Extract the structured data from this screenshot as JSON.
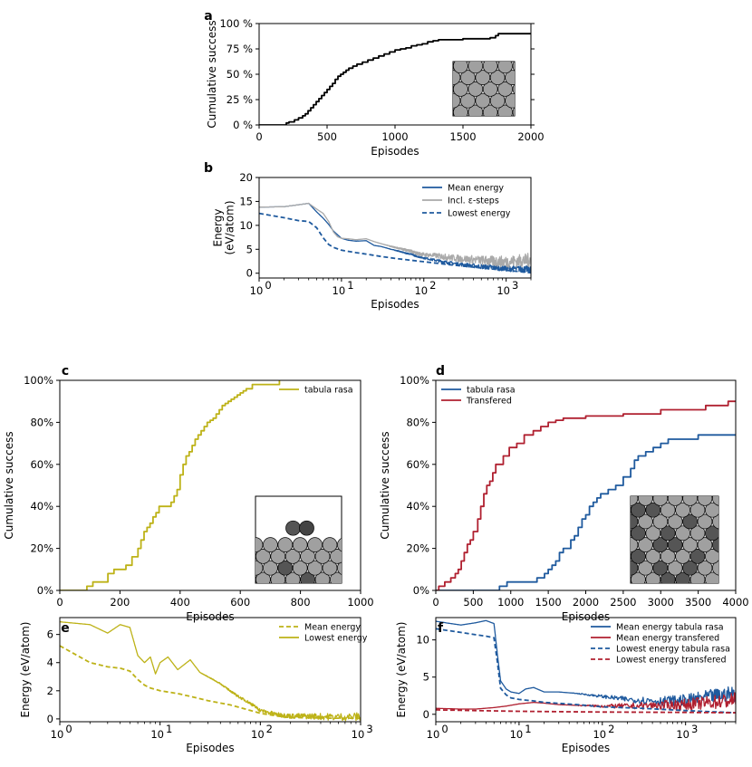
{
  "chart_data": [
    {
      "panel": "a",
      "type": "line",
      "xlabel": "Episodes",
      "ylabel": "Cumulative success",
      "xlim": [
        0,
        2000
      ],
      "ylim": [
        0,
        100
      ],
      "xticks": [
        "0",
        "500",
        "1000",
        "1500",
        "2000"
      ],
      "yticks": [
        "0 %",
        "25 %",
        "50 %",
        "75 %",
        "100 %"
      ],
      "series": [
        {
          "name": "cumulative success",
          "color": "#000000",
          "style": "step",
          "x": [
            0,
            200,
            220,
            260,
            290,
            320,
            340,
            360,
            380,
            400,
            420,
            440,
            460,
            480,
            500,
            520,
            540,
            560,
            580,
            600,
            620,
            640,
            660,
            690,
            720,
            760,
            800,
            840,
            880,
            920,
            960,
            1000,
            1040,
            1080,
            1120,
            1160,
            1200,
            1240,
            1280,
            1320,
            1400,
            1500,
            1600,
            1700,
            1740,
            1760,
            2000
          ],
          "y": [
            0,
            2,
            3,
            5,
            7,
            9,
            11,
            14,
            17,
            20,
            23,
            26,
            29,
            32,
            35,
            38,
            41,
            45,
            48,
            50,
            52,
            54,
            56,
            58,
            60,
            62,
            64,
            66,
            68,
            70,
            72,
            74,
            75,
            76,
            78,
            79,
            80,
            82,
            83,
            84,
            84,
            85,
            85,
            86,
            88,
            90,
            90
          ]
        }
      ]
    },
    {
      "panel": "b",
      "type": "line",
      "xscale": "log",
      "xlabel": "Episodes",
      "ylabel": "Energy\n(eV/atom)",
      "xlim": [
        1,
        2000
      ],
      "ylim": [
        -1,
        20
      ],
      "yticks": [
        "0",
        "5",
        "10",
        "15",
        "20"
      ],
      "xticks": [
        "10",
        "10",
        "10",
        "10"
      ],
      "xtick_exponents": [
        "0",
        "1",
        "2",
        "3"
      ],
      "legend": [
        "Mean energy",
        "Incl. ε-steps",
        "Lowest energy"
      ],
      "series": [
        {
          "name": "Mean energy",
          "color": "#1f5a9e",
          "x": [
            1,
            2,
            3,
            4,
            5,
            6,
            7,
            8,
            9,
            10,
            12,
            15,
            20,
            25,
            30,
            40,
            50,
            60,
            70,
            80,
            100,
            150,
            200,
            300,
            500,
            700,
            1000,
            1500,
            2000
          ],
          "y": [
            13.8,
            13.9,
            14.3,
            14.6,
            12.8,
            11.5,
            10.2,
            8.8,
            8.0,
            7.3,
            6.9,
            6.7,
            6.8,
            5.8,
            5.6,
            5.0,
            4.6,
            4.2,
            4.0,
            3.6,
            3.2,
            2.6,
            2.2,
            1.8,
            1.4,
            1.2,
            1.0,
            0.9,
            0.8
          ],
          "noise": 0.6
        },
        {
          "name": "Incl. ε-steps",
          "color": "#aaaaaa",
          "x": [
            1,
            2,
            3,
            4,
            5,
            6,
            7,
            8,
            9,
            10,
            12,
            15,
            20,
            25,
            30,
            40,
            50,
            60,
            70,
            80,
            100,
            150,
            200,
            300,
            500,
            700,
            1000,
            1500,
            2000
          ],
          "y": [
            13.8,
            13.9,
            14.3,
            14.6,
            13.4,
            12.5,
            10.8,
            8.6,
            7.6,
            7.3,
            7.2,
            7.0,
            7.2,
            6.6,
            6.2,
            5.6,
            5.2,
            4.9,
            4.6,
            4.2,
            3.9,
            3.6,
            3.3,
            3.0,
            2.7,
            2.5,
            2.4,
            2.6,
            2.8
          ],
          "noise": 1.2
        },
        {
          "name": "Lowest energy",
          "color": "#1f5a9e",
          "style": "dashed",
          "x": [
            1,
            2,
            3,
            4,
            5,
            6,
            7,
            8,
            10,
            15,
            20,
            30,
            50,
            100,
            200,
            500,
            1000,
            2000
          ],
          "y": [
            12.5,
            11.6,
            11.0,
            10.8,
            9.5,
            7.4,
            6.0,
            5.4,
            4.8,
            4.3,
            4.0,
            3.5,
            3.0,
            2.4,
            1.8,
            1.1,
            0.6,
            0.1
          ]
        }
      ]
    },
    {
      "panel": "c",
      "type": "line",
      "xlabel": "Episodes",
      "ylabel": "Cumulative success",
      "xlim": [
        0,
        1000
      ],
      "ylim": [
        0,
        100
      ],
      "xticks": [
        "0",
        "200",
        "400",
        "600",
        "800",
        "1000"
      ],
      "yticks": [
        "0%",
        "20%",
        "40%",
        "60%",
        "80%",
        "100%"
      ],
      "legend": [
        "tabula rasa"
      ],
      "series": [
        {
          "name": "tabula rasa",
          "color": "#bdb217",
          "style": "step",
          "x": [
            0,
            90,
            110,
            160,
            180,
            220,
            240,
            260,
            270,
            280,
            290,
            300,
            310,
            320,
            330,
            340,
            370,
            380,
            390,
            400,
            410,
            420,
            430,
            440,
            450,
            460,
            470,
            480,
            490,
            500,
            510,
            520,
            530,
            540,
            550,
            560,
            570,
            580,
            590,
            600,
            610,
            620,
            640,
            680,
            730
          ],
          "y": [
            0,
            2,
            4,
            8,
            10,
            12,
            16,
            20,
            24,
            28,
            30,
            32,
            35,
            37,
            40,
            40,
            42,
            45,
            48,
            55,
            60,
            64,
            66,
            69,
            72,
            74,
            76,
            78,
            80,
            81,
            82,
            84,
            86,
            88,
            89,
            90,
            91,
            92,
            93,
            94,
            95,
            96,
            98,
            98,
            100
          ]
        }
      ]
    },
    {
      "panel": "d",
      "type": "line",
      "xlabel": "Episodes",
      "ylabel": "Cumulative success",
      "xlim": [
        0,
        4000
      ],
      "ylim": [
        0,
        100
      ],
      "xticks": [
        "0",
        "500",
        "1000",
        "1500",
        "2000",
        "2500",
        "3000",
        "3500",
        "4000"
      ],
      "yticks": [
        "0%",
        "20%",
        "40%",
        "60%",
        "80%",
        "100%"
      ],
      "legend": [
        "tabula rasa",
        "Transfered"
      ],
      "series": [
        {
          "name": "tabula rasa",
          "color": "#1f5a9e",
          "style": "step",
          "x": [
            0,
            850,
            950,
            1000,
            1100,
            1200,
            1350,
            1450,
            1500,
            1550,
            1600,
            1650,
            1700,
            1800,
            1850,
            1900,
            1950,
            2000,
            2050,
            2100,
            2150,
            2200,
            2300,
            2400,
            2500,
            2600,
            2650,
            2700,
            2800,
            2900,
            3000,
            3100,
            3200,
            3500,
            3700,
            4000
          ],
          "y": [
            0,
            2,
            4,
            4,
            4,
            4,
            6,
            8,
            10,
            12,
            14,
            18,
            20,
            24,
            26,
            30,
            34,
            36,
            40,
            42,
            44,
            46,
            48,
            50,
            54,
            58,
            62,
            64,
            66,
            68,
            70,
            72,
            72,
            74,
            74,
            74
          ]
        },
        {
          "name": "Transfered",
          "color": "#b02030",
          "style": "step",
          "x": [
            0,
            40,
            120,
            200,
            260,
            300,
            340,
            380,
            420,
            460,
            500,
            560,
            600,
            640,
            680,
            720,
            760,
            800,
            900,
            980,
            1080,
            1180,
            1300,
            1400,
            1500,
            1600,
            1700,
            2000,
            2500,
            3000,
            3600,
            3900,
            4000
          ],
          "y": [
            0,
            2,
            4,
            6,
            8,
            10,
            14,
            18,
            22,
            24,
            28,
            34,
            40,
            46,
            50,
            52,
            56,
            60,
            64,
            68,
            70,
            74,
            76,
            78,
            80,
            81,
            82,
            83,
            84,
            86,
            88,
            90,
            90
          ]
        }
      ]
    },
    {
      "panel": "e",
      "type": "line",
      "xscale": "log",
      "xlabel": "Episodes",
      "ylabel": "Energy (eV/atom)",
      "xlim": [
        1,
        1000
      ],
      "ylim": [
        -0.2,
        7.2
      ],
      "yticks": [
        "0",
        "2",
        "4",
        "6"
      ],
      "xticks": [
        "10",
        "10",
        "10",
        "10"
      ],
      "xtick_exponents": [
        "0",
        "1",
        "2",
        "3"
      ],
      "legend": [
        "Mean energy",
        "Lowest energy"
      ],
      "series": [
        {
          "name": "Mean energy",
          "color": "#bdb217",
          "style": "dashed",
          "x": [
            1,
            1.5,
            2,
            3,
            4,
            5,
            6,
            7,
            8,
            10,
            15,
            20,
            30,
            50,
            80,
            100,
            150,
            200,
            500,
            1000
          ],
          "y": [
            5.2,
            4.5,
            4.0,
            3.7,
            3.6,
            3.4,
            2.8,
            2.4,
            2.2,
            2.0,
            1.8,
            1.6,
            1.3,
            1.0,
            0.6,
            0.4,
            0.2,
            0.1,
            0.05,
            0.05
          ]
        },
        {
          "name": "Lowest energy",
          "color": "#bdb217",
          "x": [
            1,
            2,
            3,
            4,
            5,
            6,
            7,
            8,
            9,
            10,
            12,
            15,
            20,
            25,
            30,
            40,
            50,
            60,
            80,
            100,
            150,
            200,
            300,
            500,
            1000
          ],
          "y": [
            6.9,
            6.7,
            6.1,
            6.7,
            6.5,
            4.5,
            4.0,
            4.4,
            3.2,
            4.0,
            4.4,
            3.5,
            4.2,
            3.3,
            3.0,
            2.5,
            2.0,
            1.6,
            1.1,
            0.6,
            0.3,
            0.2,
            0.2,
            0.15,
            0.15
          ],
          "noise": 0.25
        }
      ]
    },
    {
      "panel": "f",
      "type": "line",
      "xscale": "log",
      "xlabel": "Episodes",
      "ylabel": "Energy (eV/atom)",
      "xlim": [
        1,
        4000
      ],
      "ylim": [
        -1,
        13
      ],
      "yticks": [
        "0",
        "5",
        "10"
      ],
      "xticks": [
        "10",
        "10",
        "10",
        "10"
      ],
      "xtick_exponents": [
        "0",
        "1",
        "2",
        "3"
      ],
      "legend": [
        "Mean energy tabula rasa",
        "Mean energy transfered",
        "Lowest energy tabula rasa",
        "Lowest energy transfered"
      ],
      "series": [
        {
          "name": "Mean energy tabula rasa",
          "color": "#1f5a9e",
          "x": [
            1,
            2,
            3,
            4,
            5,
            5.5,
            6,
            7,
            8,
            10,
            12,
            15,
            20,
            30,
            50,
            100,
            200,
            500,
            1000,
            2000,
            4000
          ],
          "y": [
            12.5,
            12.0,
            12.3,
            12.6,
            12.2,
            8.0,
            4.5,
            3.4,
            3.0,
            2.8,
            3.4,
            3.6,
            3.0,
            3.0,
            2.8,
            2.4,
            2.0,
            1.8,
            1.9,
            2.4,
            2.8
          ],
          "noise": 0.9
        },
        {
          "name": "Mean energy transfered",
          "color": "#b02030",
          "x": [
            1,
            2,
            3,
            5,
            7,
            10,
            15,
            20,
            30,
            50,
            100,
            200,
            500,
            1000,
            2000,
            4000
          ],
          "y": [
            0.8,
            0.7,
            0.7,
            0.9,
            1.1,
            1.4,
            1.6,
            1.5,
            1.3,
            1.2,
            1.1,
            1.1,
            1.2,
            1.3,
            1.6,
            1.9
          ],
          "noise": 0.9
        },
        {
          "name": "Lowest energy tabula rasa",
          "color": "#1f5a9e",
          "style": "dashed",
          "x": [
            1,
            2,
            3,
            4,
            5,
            5.5,
            6,
            7,
            8,
            10,
            15,
            20,
            50,
            100,
            300,
            1000,
            4000
          ],
          "y": [
            11.5,
            11.0,
            10.7,
            10.5,
            10.3,
            7.0,
            3.5,
            2.6,
            2.2,
            2.0,
            1.8,
            1.6,
            1.3,
            1.0,
            0.8,
            0.5,
            0.2
          ]
        },
        {
          "name": "Lowest energy transfered",
          "color": "#b02030",
          "style": "dashed",
          "x": [
            1,
            3,
            10,
            30,
            100,
            1000,
            4000
          ],
          "y": [
            0.6,
            0.5,
            0.4,
            0.35,
            0.3,
            0.25,
            0.2
          ]
        }
      ]
    }
  ],
  "insets": [
    {
      "panel": "a",
      "dark_atoms": 0
    },
    {
      "panel": "c",
      "dark_atoms": 2
    },
    {
      "panel": "d",
      "dark_atoms": 18
    }
  ]
}
